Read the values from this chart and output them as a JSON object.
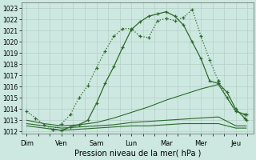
{
  "xlabel": "Pression niveau de la mer( hPa )",
  "day_labels": [
    "Dim",
    "Ven",
    "Sam",
    "Lun",
    "Mar",
    "Mer",
    "Jeu"
  ],
  "day_positions": [
    0,
    1,
    2,
    3,
    4,
    5,
    6
  ],
  "ylim": [
    1011.8,
    1023.5
  ],
  "yticks": [
    1012,
    1013,
    1014,
    1015,
    1016,
    1017,
    1018,
    1019,
    1020,
    1021,
    1022,
    1023
  ],
  "background_color": "#cce8e0",
  "grid_color": "#b0c8c0",
  "line_color": "#2d6a2d",
  "series": [
    {
      "x": [
        0,
        0.25,
        0.5,
        0.75,
        1.0,
        1.25,
        1.5,
        1.75,
        2.0,
        2.25,
        2.5,
        2.75,
        3.0,
        3.25,
        3.5,
        3.75,
        4.0,
        4.25,
        4.5,
        4.75,
        5.0,
        5.25,
        5.5
      ],
      "y": [
        1013.8,
        1013.2,
        1012.6,
        1012.2,
        1012.7,
        1013.5,
        1015.0,
        1016.1,
        1017.7,
        1019.2,
        1020.5,
        1021.2,
        1021.2,
        1020.5,
        1020.4,
        1021.9,
        1022.1,
        1021.9,
        1022.2,
        1022.9,
        1020.5,
        1018.4,
        1016.5
      ],
      "style": "dotted",
      "marker": "+"
    },
    {
      "x": [
        0.75,
        1.0,
        1.25,
        1.5,
        1.75,
        2.0,
        2.25,
        2.5,
        2.75,
        3.0,
        3.25,
        3.5,
        3.75,
        4.0,
        4.25,
        4.5,
        4.75,
        5.0,
        5.25,
        5.5
      ],
      "y": [
        1012.2,
        1012.1,
        1012.4,
        1012.6,
        1013.0,
        1014.5,
        1016.3,
        1017.8,
        1019.5,
        1021.1,
        1021.8,
        1022.3,
        1022.5,
        1022.7,
        1022.3,
        1021.5,
        1020.0,
        1018.5,
        1016.5,
        1016.3
      ],
      "style": "solid",
      "marker": "+"
    },
    {
      "x": [
        0,
        0.5,
        1.0,
        1.5,
        2.0,
        2.5,
        3.0,
        3.5,
        4.0,
        4.5,
        5.0,
        5.5,
        6.0,
        6.3
      ],
      "y": [
        1013.0,
        1012.7,
        1012.5,
        1012.6,
        1012.8,
        1013.2,
        1013.7,
        1014.2,
        1014.8,
        1015.3,
        1015.8,
        1016.2,
        1013.8,
        1013.5
      ],
      "style": "solid",
      "marker": null
    },
    {
      "x": [
        0,
        0.5,
        1.0,
        1.5,
        2.0,
        2.5,
        3.0,
        3.5,
        4.0,
        4.5,
        5.0,
        5.5,
        6.0,
        6.3
      ],
      "y": [
        1012.7,
        1012.5,
        1012.3,
        1012.4,
        1012.5,
        1012.6,
        1012.8,
        1012.9,
        1013.0,
        1013.1,
        1013.2,
        1013.3,
        1012.5,
        1012.5
      ],
      "style": "solid",
      "marker": null
    },
    {
      "x": [
        0,
        0.5,
        1.0,
        1.5,
        2.0,
        2.5,
        3.0,
        3.5,
        4.0,
        4.5,
        5.0,
        5.5,
        6.0,
        6.3
      ],
      "y": [
        1012.5,
        1012.3,
        1012.1,
        1012.2,
        1012.3,
        1012.4,
        1012.5,
        1012.5,
        1012.6,
        1012.7,
        1012.7,
        1012.7,
        1012.3,
        1012.3
      ],
      "style": "solid",
      "marker": null
    },
    {
      "x": [
        5.5,
        5.75,
        6.0,
        6.25,
        6.3
      ],
      "y": [
        1016.5,
        1015.0,
        1013.8,
        1013.5,
        1013.5
      ],
      "style": "dotted",
      "marker": "+"
    },
    {
      "x": [
        5.5,
        5.75,
        6.0,
        6.25,
        6.3
      ],
      "y": [
        1016.3,
        1015.5,
        1014.0,
        1013.2,
        1013.0
      ],
      "style": "solid",
      "marker": "+"
    }
  ]
}
